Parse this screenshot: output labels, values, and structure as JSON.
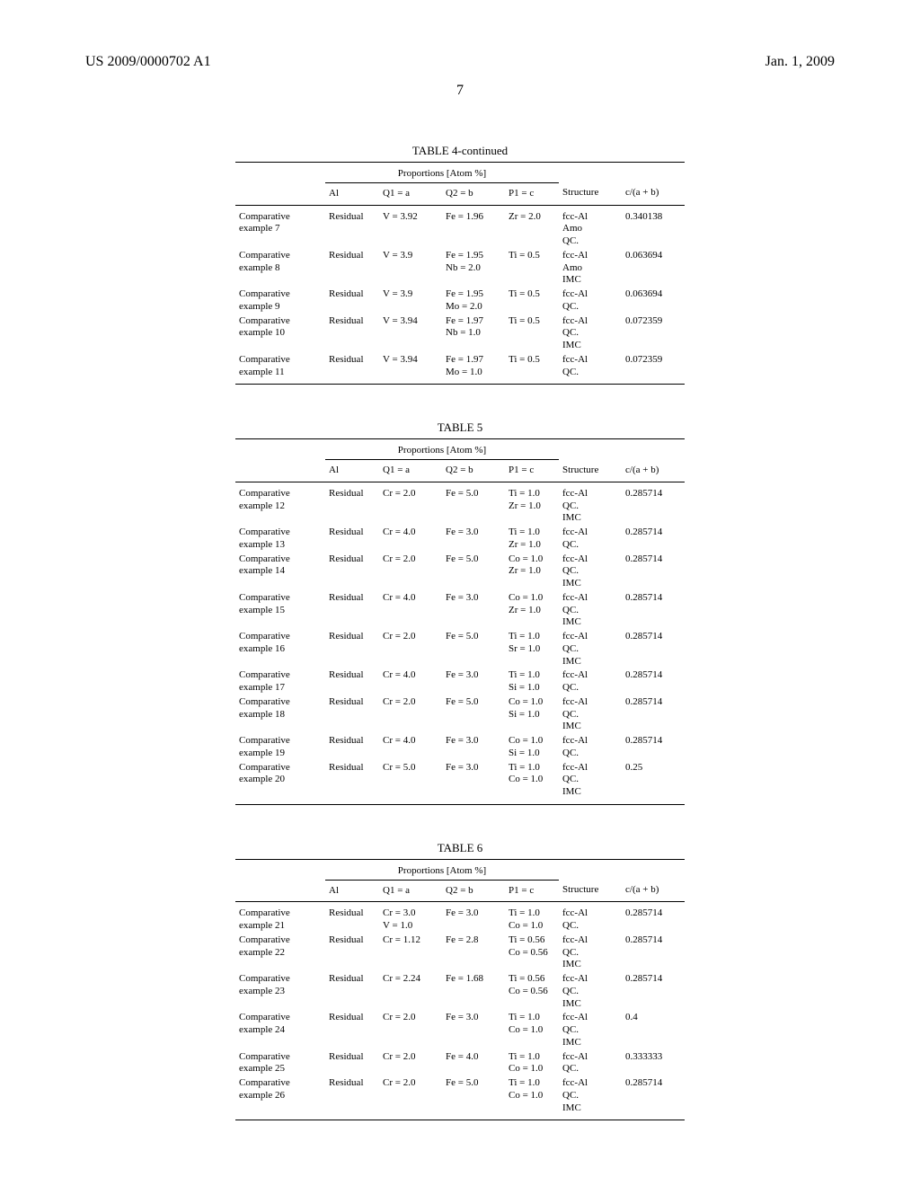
{
  "header": {
    "patent_id": "US 2009/0000702 A1",
    "date": "Jan. 1, 2009",
    "page_number": "7"
  },
  "tables": [
    {
      "title": "TABLE 4-continued",
      "span_header": "Proportions [Atom %]",
      "columns": [
        "",
        "Al",
        "Q1 = a",
        "Q2 = b",
        "P1 = c",
        "Structure",
        "c/(a + b)"
      ],
      "rows": [
        {
          "label": "Comparative example 7",
          "al": "Residual",
          "q1": "V = 3.92",
          "q2": "Fe = 1.96",
          "p1": "Zr = 2.0",
          "structure": "fcc-Al\nAmo\nQC.",
          "ratio": "0.340138"
        },
        {
          "label": "Comparative example 8",
          "al": "Residual",
          "q1": "V = 3.9",
          "q2": "Fe = 1.95\nNb = 2.0",
          "p1": "Ti = 0.5",
          "structure": "fcc-Al\nAmo\nIMC",
          "ratio": "0.063694"
        },
        {
          "label": "Comparative example 9",
          "al": "Residual",
          "q1": "V = 3.9",
          "q2": "Fe = 1.95\nMo = 2.0",
          "p1": "Ti = 0.5",
          "structure": "fcc-Al\nQC.",
          "ratio": "0.063694"
        },
        {
          "label": "Comparative example 10",
          "al": "Residual",
          "q1": "V = 3.94",
          "q2": "Fe = 1.97\nNb = 1.0",
          "p1": "Ti = 0.5",
          "structure": "fcc-Al\nQC.\nIMC",
          "ratio": "0.072359"
        },
        {
          "label": "Comparative example 11",
          "al": "Residual",
          "q1": "V = 3.94",
          "q2": "Fe = 1.97\nMo = 1.0",
          "p1": "Ti = 0.5",
          "structure": "fcc-Al\nQC.",
          "ratio": "0.072359"
        }
      ]
    },
    {
      "title": "TABLE 5",
      "span_header": "Proportions [Atom %]",
      "columns": [
        "",
        "Al",
        "Q1 = a",
        "Q2 = b",
        "P1 = c",
        "Structure",
        "c/(a + b)"
      ],
      "rows": [
        {
          "label": "Comparative example 12",
          "al": "Residual",
          "q1": "Cr = 2.0",
          "q2": "Fe = 5.0",
          "p1": "Ti = 1.0\nZr = 1.0",
          "structure": "fcc-Al\nQC.\nIMC",
          "ratio": "0.285714"
        },
        {
          "label": "Comparative example 13",
          "al": "Residual",
          "q1": "Cr = 4.0",
          "q2": "Fe = 3.0",
          "p1": "Ti = 1.0\nZr = 1.0",
          "structure": "fcc-Al\nQC.",
          "ratio": "0.285714"
        },
        {
          "label": "Comparative example 14",
          "al": "Residual",
          "q1": "Cr = 2.0",
          "q2": "Fe = 5.0",
          "p1": "Co = 1.0\nZr = 1.0",
          "structure": "fcc-Al\nQC.\nIMC",
          "ratio": "0.285714"
        },
        {
          "label": "Comparative example 15",
          "al": "Residual",
          "q1": "Cr = 4.0",
          "q2": "Fe = 3.0",
          "p1": "Co = 1.0\nZr = 1.0",
          "structure": "fcc-Al\nQC.\nIMC",
          "ratio": "0.285714"
        },
        {
          "label": "Comparative example 16",
          "al": "Residual",
          "q1": "Cr = 2.0",
          "q2": "Fe = 5.0",
          "p1": "Ti = 1.0\nSr = 1.0",
          "structure": "fcc-Al\nQC.\nIMC",
          "ratio": "0.285714"
        },
        {
          "label": "Comparative example 17",
          "al": "Residual",
          "q1": "Cr = 4.0",
          "q2": "Fe = 3.0",
          "p1": "Ti = 1.0\nSi = 1.0",
          "structure": "fcc-Al\nQC.",
          "ratio": "0.285714"
        },
        {
          "label": "Comparative example 18",
          "al": "Residual",
          "q1": "Cr = 2.0",
          "q2": "Fe = 5.0",
          "p1": "Co = 1.0\nSi = 1.0",
          "structure": "fcc-Al\nQC.\nIMC",
          "ratio": "0.285714"
        },
        {
          "label": "Comparative example 19",
          "al": "Residual",
          "q1": "Cr = 4.0",
          "q2": "Fe = 3.0",
          "p1": "Co = 1.0\nSi = 1.0",
          "structure": "fcc-Al\nQC.",
          "ratio": "0.285714"
        },
        {
          "label": "Comparative example 20",
          "al": "Residual",
          "q1": "Cr = 5.0",
          "q2": "Fe = 3.0",
          "p1": "Ti = 1.0\nCo = 1.0",
          "structure": "fcc-Al\nQC.\nIMC",
          "ratio": "0.25"
        }
      ]
    },
    {
      "title": "TABLE 6",
      "span_header": "Proportions [Atom %]",
      "columns": [
        "",
        "Al",
        "Q1 = a",
        "Q2 = b",
        "P1 = c",
        "Structure",
        "c/(a + b)"
      ],
      "rows": [
        {
          "label": "Comparative example 21",
          "al": "Residual",
          "q1": "Cr = 3.0\nV = 1.0",
          "q2": "Fe = 3.0",
          "p1": "Ti = 1.0\nCo = 1.0",
          "structure": "fcc-Al\nQC.",
          "ratio": "0.285714"
        },
        {
          "label": "Comparative example 22",
          "al": "Residual",
          "q1": "Cr = 1.12",
          "q2": "Fe = 2.8",
          "p1": "Ti = 0.56\nCo = 0.56",
          "structure": "fcc-Al\nQC.\nIMC",
          "ratio": "0.285714"
        },
        {
          "label": "Comparative example 23",
          "al": "Residual",
          "q1": "Cr = 2.24",
          "q2": "Fe = 1.68",
          "p1": "Ti = 0.56\nCo = 0.56",
          "structure": "fcc-Al\nQC.\nIMC",
          "ratio": "0.285714"
        },
        {
          "label": "Comparative example 24",
          "al": "Residual",
          "q1": "Cr = 2.0",
          "q2": "Fe = 3.0",
          "p1": "Ti = 1.0\nCo = 1.0",
          "structure": "fcc-Al\nQC.\nIMC",
          "ratio": "0.4"
        },
        {
          "label": "Comparative example 25",
          "al": "Residual",
          "q1": "Cr = 2.0",
          "q2": "Fe = 4.0",
          "p1": "Ti = 1.0\nCo = 1.0",
          "structure": "fcc-Al\nQC.",
          "ratio": "0.333333"
        },
        {
          "label": "Comparative example 26",
          "al": "Residual",
          "q1": "Cr = 2.0",
          "q2": "Fe = 5.0",
          "p1": "Ti = 1.0\nCo = 1.0",
          "structure": "fcc-Al\nQC.\nIMC",
          "ratio": "0.285714"
        }
      ]
    }
  ],
  "col_widths": [
    "20%",
    "12%",
    "14%",
    "14%",
    "12%",
    "14%",
    "14%"
  ]
}
